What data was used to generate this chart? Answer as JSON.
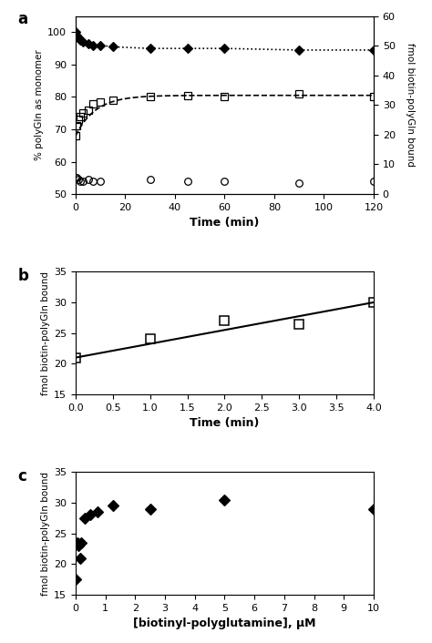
{
  "panel_a": {
    "diamonds_x": [
      0,
      0.5,
      1,
      2,
      3,
      5,
      7,
      10,
      15,
      30,
      45,
      60,
      90,
      120
    ],
    "diamonds_y": [
      100,
      99,
      98.5,
      97.5,
      97,
      96.5,
      96,
      96,
      95.5,
      95,
      95,
      95,
      94.5,
      94.5
    ],
    "squares_x": [
      0,
      0.5,
      1,
      2,
      3,
      5,
      7,
      10,
      15,
      30,
      45,
      60,
      90,
      120
    ],
    "squares_y": [
      68,
      71,
      73,
      74,
      75,
      76,
      78,
      78.5,
      79,
      80,
      80.5,
      80,
      81,
      80
    ],
    "circles_x": [
      0,
      0.5,
      1,
      2,
      3,
      5,
      7,
      10,
      30,
      45,
      60,
      90,
      120
    ],
    "circles_y": [
      55,
      55,
      54.5,
      54,
      54,
      54.5,
      54,
      54,
      54.5,
      54,
      54,
      53.5,
      54
    ],
    "xlabel": "Time (min)",
    "ylabel_left": "% polyGln as monomer",
    "ylabel_right": "fmol biotin-polyGln bound",
    "xlim": [
      0,
      120
    ],
    "ylim_left": [
      50,
      105
    ],
    "ylim_right": [
      0,
      60
    ],
    "yticks_left": [
      50,
      60,
      70,
      80,
      90,
      100
    ],
    "yticks_right": [
      0,
      10,
      20,
      30,
      40,
      50,
      60
    ],
    "xticks": [
      0,
      20,
      40,
      60,
      80,
      100,
      120
    ],
    "label": "a",
    "exp_decay_a": 80.5,
    "exp_decay_b": 12.5,
    "exp_decay_tau": 8.0
  },
  "panel_b": {
    "squares_x": [
      0,
      1,
      2,
      3,
      4
    ],
    "squares_y": [
      21,
      24,
      27,
      26.5,
      30
    ],
    "fit_x": [
      0,
      4
    ],
    "fit_y": [
      21,
      30
    ],
    "xlabel": "Time (min)",
    "ylabel": "fmol biotin-polyGln bound",
    "xlim": [
      0,
      4
    ],
    "ylim": [
      15,
      35
    ],
    "yticks": [
      15,
      20,
      25,
      30,
      35
    ],
    "xticks": [
      0,
      0.5,
      1,
      1.5,
      2,
      2.5,
      3,
      3.5,
      4
    ],
    "label": "b"
  },
  "panel_c": {
    "diamonds_x": [
      0.0,
      0.05,
      0.1,
      0.15,
      0.2,
      0.3,
      0.5,
      0.75,
      1.25,
      2.5,
      5,
      10
    ],
    "diamonds_y": [
      17.5,
      23.5,
      23,
      21,
      23.5,
      27.5,
      28,
      28.5,
      29.5,
      29,
      30.5,
      29
    ],
    "xlabel": "[biotinyl-polyglutamine], μM",
    "ylabel": "fmol biotin-polyGln bound",
    "xlim": [
      0,
      10
    ],
    "ylim": [
      15,
      35
    ],
    "yticks": [
      15,
      20,
      25,
      30,
      35
    ],
    "xticks": [
      0,
      1,
      2,
      3,
      4,
      5,
      6,
      7,
      8,
      9,
      10
    ],
    "label": "c"
  }
}
